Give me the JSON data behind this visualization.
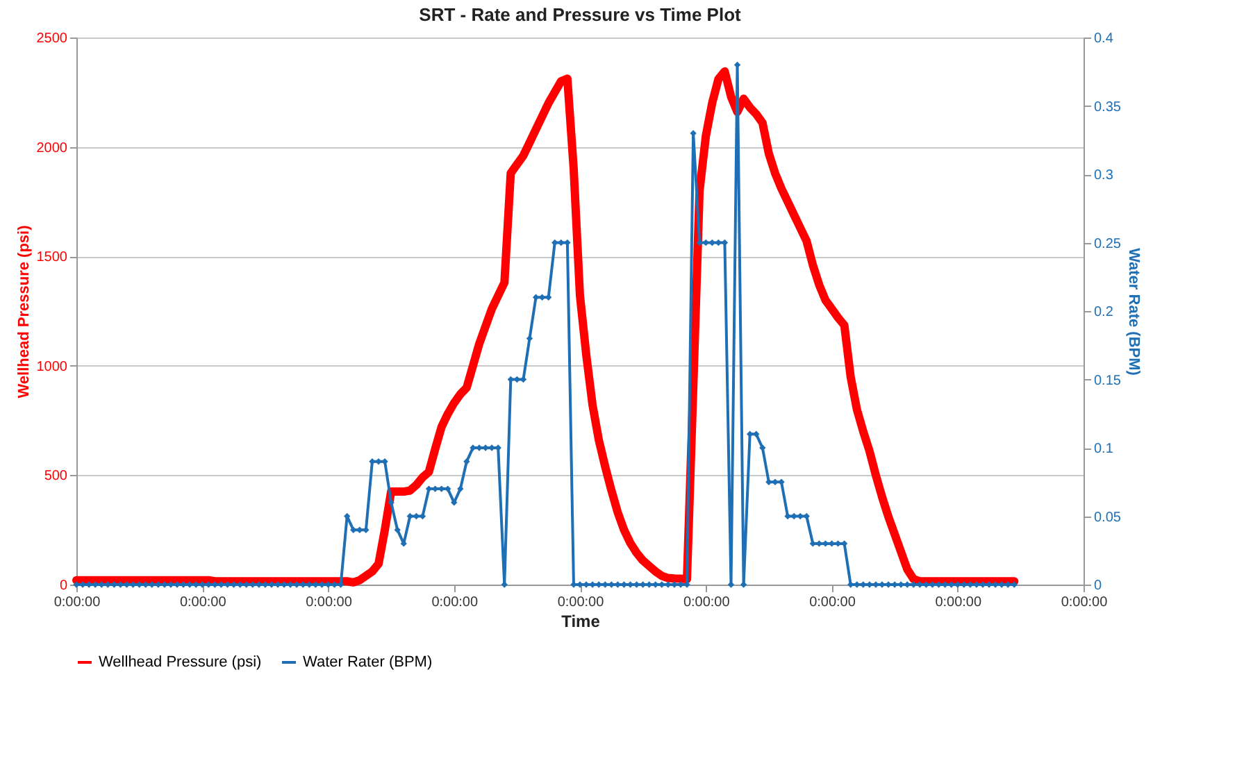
{
  "chart_data": {
    "type": "line",
    "title": "SRT - Rate and Pressure vs Time Plot",
    "xlabel": "Time",
    "ylabel": "Wellhead Pressure (psi)",
    "y2label": "Water Rate (BPM)",
    "categories": [
      "0:00:00",
      null,
      null,
      null,
      null,
      null,
      null,
      null,
      null,
      null,
      null,
      null,
      null,
      null,
      null,
      null,
      null,
      null,
      null,
      null,
      "0:00:00",
      null,
      null,
      null,
      null,
      null,
      null,
      null,
      null,
      null,
      null,
      null,
      null,
      null,
      null,
      null,
      null,
      null,
      null,
      null,
      "0:00:00",
      null,
      null,
      null,
      null,
      null,
      null,
      null,
      null,
      null,
      null,
      null,
      null,
      null,
      null,
      null,
      null,
      null,
      null,
      null,
      "0:00:00",
      null,
      null,
      null,
      null,
      null,
      null,
      null,
      null,
      null,
      null,
      null,
      null,
      null,
      null,
      null,
      null,
      null,
      null,
      null,
      "0:00:00",
      null,
      null,
      null,
      null,
      null,
      null,
      null,
      null,
      null,
      null,
      null,
      null,
      null,
      null,
      null,
      null,
      null,
      null,
      null,
      "0:00:00",
      null,
      null,
      null,
      null,
      null,
      null,
      null,
      null,
      null,
      null,
      null,
      null,
      null,
      null,
      null,
      null,
      null,
      null,
      null,
      "0:00:00",
      null,
      null,
      null,
      null,
      null,
      null,
      null,
      null,
      null,
      null,
      null,
      null,
      null,
      null,
      null,
      null,
      null,
      null,
      null,
      "0:00:00",
      null,
      null,
      null,
      null,
      null,
      null,
      null,
      null,
      null,
      null,
      null,
      null,
      null,
      null,
      null,
      null,
      null,
      null,
      null,
      "0:00:00"
    ],
    "ylim": [
      0,
      2500
    ],
    "yticks": [
      0,
      500,
      1000,
      1500,
      2000,
      2500
    ],
    "y2lim": [
      0,
      0.4
    ],
    "y2ticks": [
      0,
      0.05,
      0.1,
      0.15,
      0.2,
      0.25,
      0.3,
      0.35,
      0.4
    ],
    "grid": "y",
    "legend": "bottom",
    "marker": "diamond",
    "line_style": "solid",
    "series": [
      {
        "name": "Wellhead Pressure (psi)",
        "color": "#ff0000",
        "values": [
          20,
          20,
          20,
          20,
          20,
          20,
          20,
          20,
          20,
          20,
          20,
          20,
          20,
          20,
          20,
          20,
          20,
          20,
          20,
          20,
          20,
          20,
          15,
          15,
          15,
          15,
          15,
          15,
          15,
          15,
          15,
          15,
          15,
          15,
          15,
          15,
          15,
          15,
          15,
          15,
          15,
          15,
          15,
          15,
          10,
          20,
          40,
          60,
          95,
          250,
          425,
          425,
          425,
          430,
          455,
          490,
          515,
          620,
          720,
          780,
          830,
          870,
          900,
          1000,
          1100,
          1180,
          1260,
          1320,
          1380,
          1880,
          1920,
          1960,
          2020,
          2080,
          2140,
          2200,
          2250,
          2300,
          2312,
          1900,
          1320,
          1050,
          820,
          660,
          540,
          430,
          330,
          250,
          190,
          145,
          110,
          85,
          60,
          40,
          30,
          28,
          27,
          25,
          900,
          1800,
          2050,
          2200,
          2310,
          2345,
          2230,
          2160,
          2220,
          2180,
          2150,
          2110,
          1970,
          1880,
          1810,
          1750,
          1690,
          1630,
          1570,
          1460,
          1370,
          1300,
          1260,
          1220,
          1185,
          950,
          800,
          700,
          610,
          500,
          400,
          310,
          230,
          150,
          70,
          25,
          15,
          15,
          15,
          15,
          15,
          15,
          15,
          15,
          15,
          15,
          15,
          15,
          15,
          15,
          15,
          15,
          null,
          null,
          null,
          null,
          null,
          null,
          null,
          null,
          null,
          null,
          null
        ]
      },
      {
        "name": "Water Rater (BPM)",
        "color": "#1f6fb5",
        "axis": "y2",
        "values": [
          0,
          0,
          0,
          0,
          0,
          0,
          0,
          0,
          0,
          0,
          0,
          0,
          0,
          0,
          0,
          0,
          0,
          0,
          0,
          0,
          0,
          0,
          0,
          0,
          0,
          0,
          0,
          0,
          0,
          0,
          0,
          0,
          0,
          0,
          0,
          0,
          0,
          0,
          0,
          0,
          0,
          0,
          0,
          0.05,
          0.04,
          0.04,
          0.04,
          0.09,
          0.09,
          0.09,
          0.06,
          0.04,
          0.03,
          0.05,
          0.05,
          0.05,
          0.07,
          0.07,
          0.07,
          0.07,
          0.06,
          0.07,
          0.09,
          0.1,
          0.1,
          0.1,
          0.1,
          0.1,
          0,
          0.15,
          0.15,
          0.15,
          0.18,
          0.21,
          0.21,
          0.21,
          0.25,
          0.25,
          0.25,
          0,
          0,
          0,
          0,
          0,
          0,
          0,
          0,
          0,
          0,
          0,
          0,
          0,
          0,
          0,
          0,
          0,
          0,
          0,
          0.33,
          0.25,
          0.25,
          0.25,
          0.25,
          0.25,
          0,
          0.38,
          0,
          0.11,
          0.11,
          0.1,
          0.075,
          0.075,
          0.075,
          0.05,
          0.05,
          0.05,
          0.05,
          0.03,
          0.03,
          0.03,
          0.03,
          0.03,
          0.03,
          0,
          0,
          0,
          0,
          0,
          0,
          0,
          0,
          0,
          0,
          0,
          0,
          0,
          0,
          0,
          0,
          0,
          0,
          0,
          0,
          0,
          0,
          0,
          0,
          0,
          0,
          0,
          null,
          null,
          null,
          null,
          null,
          null,
          null,
          null,
          null,
          null,
          null
        ]
      }
    ]
  }
}
